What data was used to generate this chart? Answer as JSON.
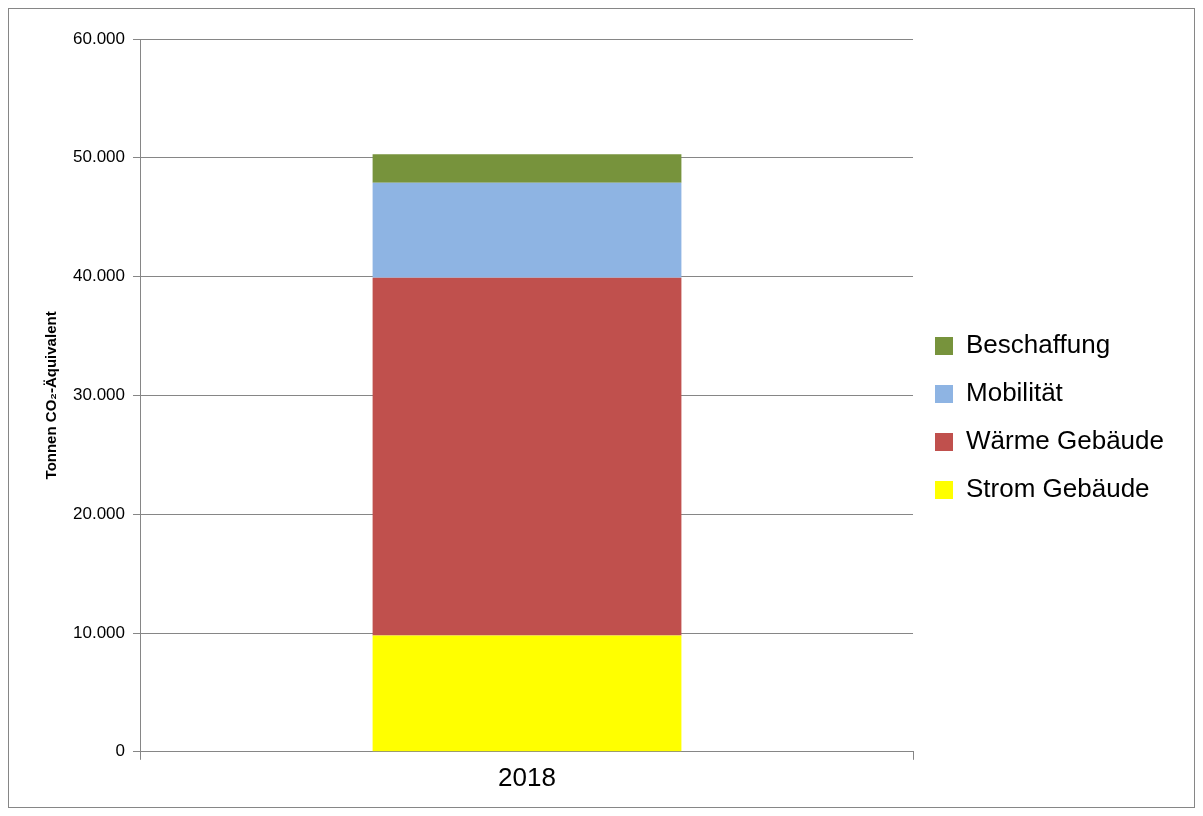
{
  "chart_data": {
    "type": "bar",
    "ylabel": "Tonnen CO₂-Äquivalent",
    "categories": [
      "2018"
    ],
    "stacked": true,
    "series": [
      {
        "name": "Strom Gebäude",
        "color": "#ffff00",
        "values": [
          9800
        ]
      },
      {
        "name": "Wärme Gebäude",
        "color": "#c0504d",
        "values": [
          30100
        ]
      },
      {
        "name": "Mobilität",
        "color": "#8eb4e3",
        "values": [
          8000
        ]
      },
      {
        "name": "Beschaffung",
        "color": "#77933c",
        "values": [
          2400
        ]
      }
    ],
    "ylim": [
      0,
      60000
    ],
    "yticks": [
      0,
      {
        "value": 10000,
        "label": "10.000"
      },
      {
        "value": 20000,
        "label": "20.000"
      },
      {
        "value": 30000,
        "label": "30.000"
      },
      {
        "value": 40000,
        "label": "40.000"
      },
      {
        "value": 50000,
        "label": "50.000"
      },
      {
        "value": 60000,
        "label": "60.000"
      }
    ],
    "grid": "y",
    "legend": "right"
  }
}
